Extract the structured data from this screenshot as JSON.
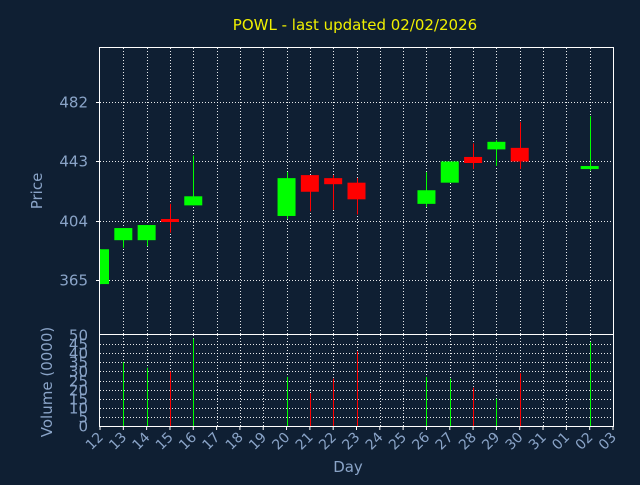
{
  "chart_data": {
    "type": "candlestick",
    "title": "POWL - last updated 02/02/2026",
    "xlabel": "Day",
    "ylabel": "Price",
    "volume_label": "Volume (0000)",
    "x_ticks": [
      "12",
      "13",
      "14",
      "15",
      "16",
      "17",
      "18",
      "19",
      "20",
      "21",
      "22",
      "23",
      "24",
      "25",
      "26",
      "27",
      "28",
      "29",
      "30",
      "31",
      "01",
      "02",
      "03"
    ],
    "price_ticks": [
      365,
      404,
      443,
      482
    ],
    "price_range": [
      329,
      518
    ],
    "volume_ticks": [
      0,
      5,
      10,
      15,
      20,
      25,
      30,
      35,
      40,
      45,
      50
    ],
    "volume_range": [
      0,
      50
    ],
    "grid": true,
    "up_color": "#00ff00",
    "down_color": "#ff0000",
    "candles": [
      {
        "day": "12",
        "open": 362,
        "high": 385,
        "low": 362,
        "close": 385,
        "volume": 0
      },
      {
        "day": "13",
        "open": 391,
        "high": 399,
        "low": 386,
        "close": 399,
        "volume": 35
      },
      {
        "day": "14",
        "open": 391,
        "high": 401,
        "low": 387,
        "close": 401,
        "volume": 32
      },
      {
        "day": "15",
        "open": 405,
        "high": 415,
        "low": 396,
        "close": 404,
        "volume": 30
      },
      {
        "day": "16",
        "open": 414,
        "high": 447,
        "low": 414,
        "close": 420,
        "volume": 48
      },
      {
        "day": "17",
        "open": null,
        "high": null,
        "low": null,
        "close": null,
        "volume": 0
      },
      {
        "day": "18",
        "open": null,
        "high": null,
        "low": null,
        "close": null,
        "volume": 0
      },
      {
        "day": "19",
        "open": null,
        "high": null,
        "low": null,
        "close": null,
        "volume": 0
      },
      {
        "day": "20",
        "open": 407,
        "high": 436,
        "low": 405,
        "close": 432,
        "volume": 27
      },
      {
        "day": "21",
        "open": 434,
        "high": 434,
        "low": 410,
        "close": 423,
        "volume": 18
      },
      {
        "day": "22",
        "open": 432,
        "high": 434,
        "low": 411,
        "close": 428,
        "volume": 26
      },
      {
        "day": "23",
        "open": 429,
        "high": 432,
        "low": 408,
        "close": 418,
        "volume": 41
      },
      {
        "day": "24",
        "open": null,
        "high": null,
        "low": null,
        "close": null,
        "volume": 0
      },
      {
        "day": "25",
        "open": null,
        "high": null,
        "low": null,
        "close": null,
        "volume": 0
      },
      {
        "day": "26",
        "open": 415,
        "high": 436,
        "low": 413,
        "close": 424,
        "volume": 27
      },
      {
        "day": "27",
        "open": 429,
        "high": 443,
        "low": 429,
        "close": 443,
        "volume": 26
      },
      {
        "day": "28",
        "open": 446,
        "high": 455,
        "low": 438,
        "close": 442,
        "volume": 21
      },
      {
        "day": "29",
        "open": 451,
        "high": 457,
        "low": 440,
        "close": 456,
        "volume": 15
      },
      {
        "day": "30",
        "open": 452,
        "high": 469,
        "low": 438,
        "close": 443,
        "volume": 29
      },
      {
        "day": "31",
        "open": null,
        "high": null,
        "low": null,
        "close": null,
        "volume": 0
      },
      {
        "day": "01",
        "open": null,
        "high": null,
        "low": null,
        "close": null,
        "volume": 0
      },
      {
        "day": "02",
        "open": 438,
        "high": 473,
        "low": 437,
        "close": 440,
        "volume": 46
      }
    ]
  }
}
